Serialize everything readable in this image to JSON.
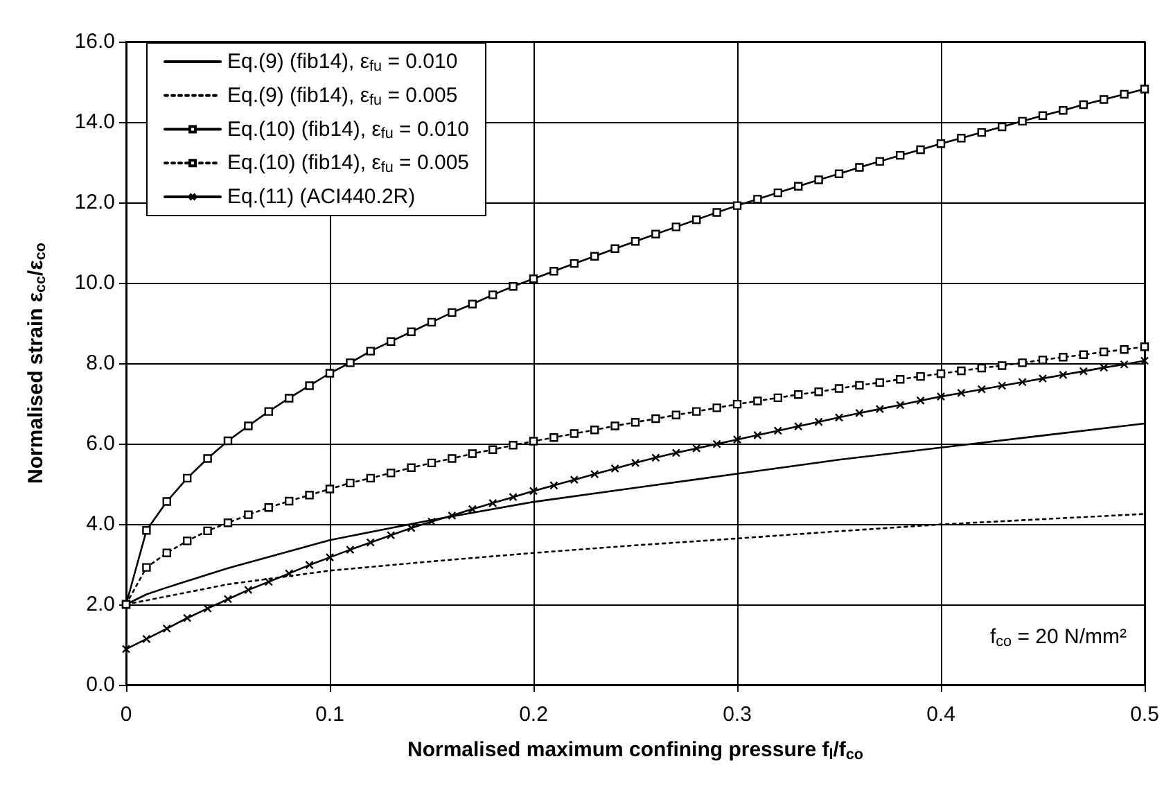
{
  "chart_data": {
    "type": "line",
    "xlabel": "Normalised maximum confining pressure f$_{l}$/f$_{co}$",
    "ylabel": "Normalised strain ε$_{cc}$/ε$_{co}$",
    "annotations": [
      "f$_{co}$ = 20 N/mm²"
    ],
    "xlim": [
      0,
      0.5
    ],
    "xticks": [
      0,
      0.1,
      0.2,
      0.3,
      0.4,
      0.5
    ],
    "ylim": [
      0,
      16
    ],
    "yticks": [
      {
        "value": 0,
        "label": "0.0"
      },
      {
        "value": 2,
        "label": "2.0"
      },
      {
        "value": 4,
        "label": "4.0"
      },
      {
        "value": 6,
        "label": "6.0"
      },
      {
        "value": 8,
        "label": "8.0"
      },
      {
        "value": 10,
        "label": "10.0"
      },
      {
        "value": 12,
        "label": "12.0"
      },
      {
        "value": 14,
        "label": "14.0"
      },
      {
        "value": 16,
        "label": "16.0"
      }
    ],
    "grid": true,
    "legend": "top left",
    "series": [
      {
        "name": "Eq.(9) (fib14), ε$_{fu}$ = 0.010",
        "color": "#000000",
        "marker": "none",
        "line_style": "solid",
        "x": [
          0,
          0.01,
          0.02,
          0.05,
          0.1,
          0.15,
          0.2,
          0.25,
          0.3,
          0.35,
          0.4,
          0.45,
          0.5
        ],
        "values": [
          2.0,
          2.25,
          2.42,
          2.9,
          3.6,
          4.1,
          4.55,
          4.9,
          5.25,
          5.6,
          5.9,
          6.2,
          6.5
        ]
      },
      {
        "name": "Eq.(9) (fib14), ε$_{fu}$ = 0.005",
        "color": "#000000",
        "marker": "none",
        "line_style": "dotted",
        "x": [
          0,
          0.02,
          0.05,
          0.1,
          0.15,
          0.2,
          0.25,
          0.3,
          0.35,
          0.4,
          0.45,
          0.5
        ],
        "values": [
          2.0,
          2.2,
          2.5,
          2.84,
          3.07,
          3.28,
          3.47,
          3.64,
          3.82,
          3.99,
          4.12,
          4.25
        ]
      },
      {
        "name": "Eq.(10) (fib14), ε$_{fu}$ = 0.010",
        "color": "#000000",
        "marker": "square",
        "line_style": "solid",
        "x": [
          0,
          0.01,
          0.02,
          0.03,
          0.04,
          0.05,
          0.06,
          0.07,
          0.08,
          0.09,
          0.1,
          0.11,
          0.12,
          0.13,
          0.14,
          0.15,
          0.16,
          0.17,
          0.18,
          0.19,
          0.2,
          0.21,
          0.22,
          0.23,
          0.24,
          0.25,
          0.26,
          0.27,
          0.28,
          0.29,
          0.3,
          0.31,
          0.32,
          0.33,
          0.34,
          0.35,
          0.36,
          0.37,
          0.38,
          0.39,
          0.4,
          0.41,
          0.42,
          0.43,
          0.44,
          0.45,
          0.46,
          0.47,
          0.48,
          0.49,
          0.5
        ],
        "values": [
          2.0,
          3.84,
          4.56,
          5.14,
          5.63,
          6.07,
          6.44,
          6.8,
          7.13,
          7.44,
          7.75,
          8.01,
          8.3,
          8.54,
          8.78,
          9.02,
          9.26,
          9.47,
          9.7,
          9.91,
          10.1,
          10.29,
          10.48,
          10.66,
          10.85,
          11.03,
          11.21,
          11.39,
          11.57,
          11.75,
          11.92,
          12.08,
          12.24,
          12.4,
          12.56,
          12.71,
          12.87,
          13.02,
          13.17,
          13.31,
          13.46,
          13.6,
          13.74,
          13.88,
          14.02,
          14.16,
          14.29,
          14.43,
          14.56,
          14.69,
          14.82
        ]
      },
      {
        "name": "Eq.(10) (fib14), ε$_{fu}$ = 0.005",
        "color": "#000000",
        "marker": "square",
        "line_style": "dotted",
        "x": [
          0,
          0.01,
          0.02,
          0.03,
          0.04,
          0.05,
          0.06,
          0.07,
          0.08,
          0.09,
          0.1,
          0.11,
          0.12,
          0.13,
          0.14,
          0.15,
          0.16,
          0.17,
          0.18,
          0.19,
          0.2,
          0.21,
          0.22,
          0.23,
          0.24,
          0.25,
          0.26,
          0.27,
          0.28,
          0.29,
          0.3,
          0.31,
          0.32,
          0.33,
          0.34,
          0.35,
          0.36,
          0.37,
          0.38,
          0.39,
          0.4,
          0.41,
          0.42,
          0.43,
          0.44,
          0.45,
          0.46,
          0.47,
          0.48,
          0.49,
          0.5
        ],
        "values": [
          2.0,
          2.92,
          3.28,
          3.58,
          3.83,
          4.03,
          4.23,
          4.41,
          4.57,
          4.72,
          4.87,
          5.02,
          5.14,
          5.27,
          5.4,
          5.52,
          5.63,
          5.75,
          5.85,
          5.96,
          6.06,
          6.15,
          6.25,
          6.34,
          6.44,
          6.53,
          6.62,
          6.71,
          6.8,
          6.89,
          6.98,
          7.06,
          7.14,
          7.22,
          7.29,
          7.37,
          7.45,
          7.52,
          7.6,
          7.67,
          7.74,
          7.81,
          7.88,
          7.94,
          8.01,
          8.08,
          8.15,
          8.21,
          8.28,
          8.34,
          8.41
        ]
      },
      {
        "name": "Eq.(11) (ACI440.2R)",
        "color": "#000000",
        "marker": "cross",
        "line_style": "solid",
        "x": [
          0,
          0.01,
          0.02,
          0.03,
          0.04,
          0.05,
          0.06,
          0.07,
          0.08,
          0.09,
          0.1,
          0.11,
          0.12,
          0.13,
          0.14,
          0.15,
          0.16,
          0.17,
          0.18,
          0.19,
          0.2,
          0.21,
          0.22,
          0.23,
          0.24,
          0.25,
          0.26,
          0.27,
          0.28,
          0.29,
          0.3,
          0.31,
          0.32,
          0.33,
          0.34,
          0.35,
          0.36,
          0.37,
          0.38,
          0.39,
          0.4,
          0.41,
          0.42,
          0.43,
          0.44,
          0.45,
          0.46,
          0.47,
          0.48,
          0.49,
          0.5
        ],
        "values": [
          0.89,
          1.14,
          1.4,
          1.66,
          1.9,
          2.13,
          2.36,
          2.56,
          2.77,
          2.98,
          3.17,
          3.36,
          3.54,
          3.72,
          3.9,
          4.06,
          4.21,
          4.37,
          4.52,
          4.67,
          4.82,
          4.96,
          5.1,
          5.24,
          5.38,
          5.52,
          5.65,
          5.77,
          5.88,
          5.99,
          6.1,
          6.21,
          6.32,
          6.43,
          6.54,
          6.65,
          6.76,
          6.86,
          6.96,
          7.07,
          7.17,
          7.26,
          7.35,
          7.44,
          7.53,
          7.62,
          7.71,
          7.8,
          7.89,
          7.97,
          8.06
        ]
      }
    ]
  }
}
